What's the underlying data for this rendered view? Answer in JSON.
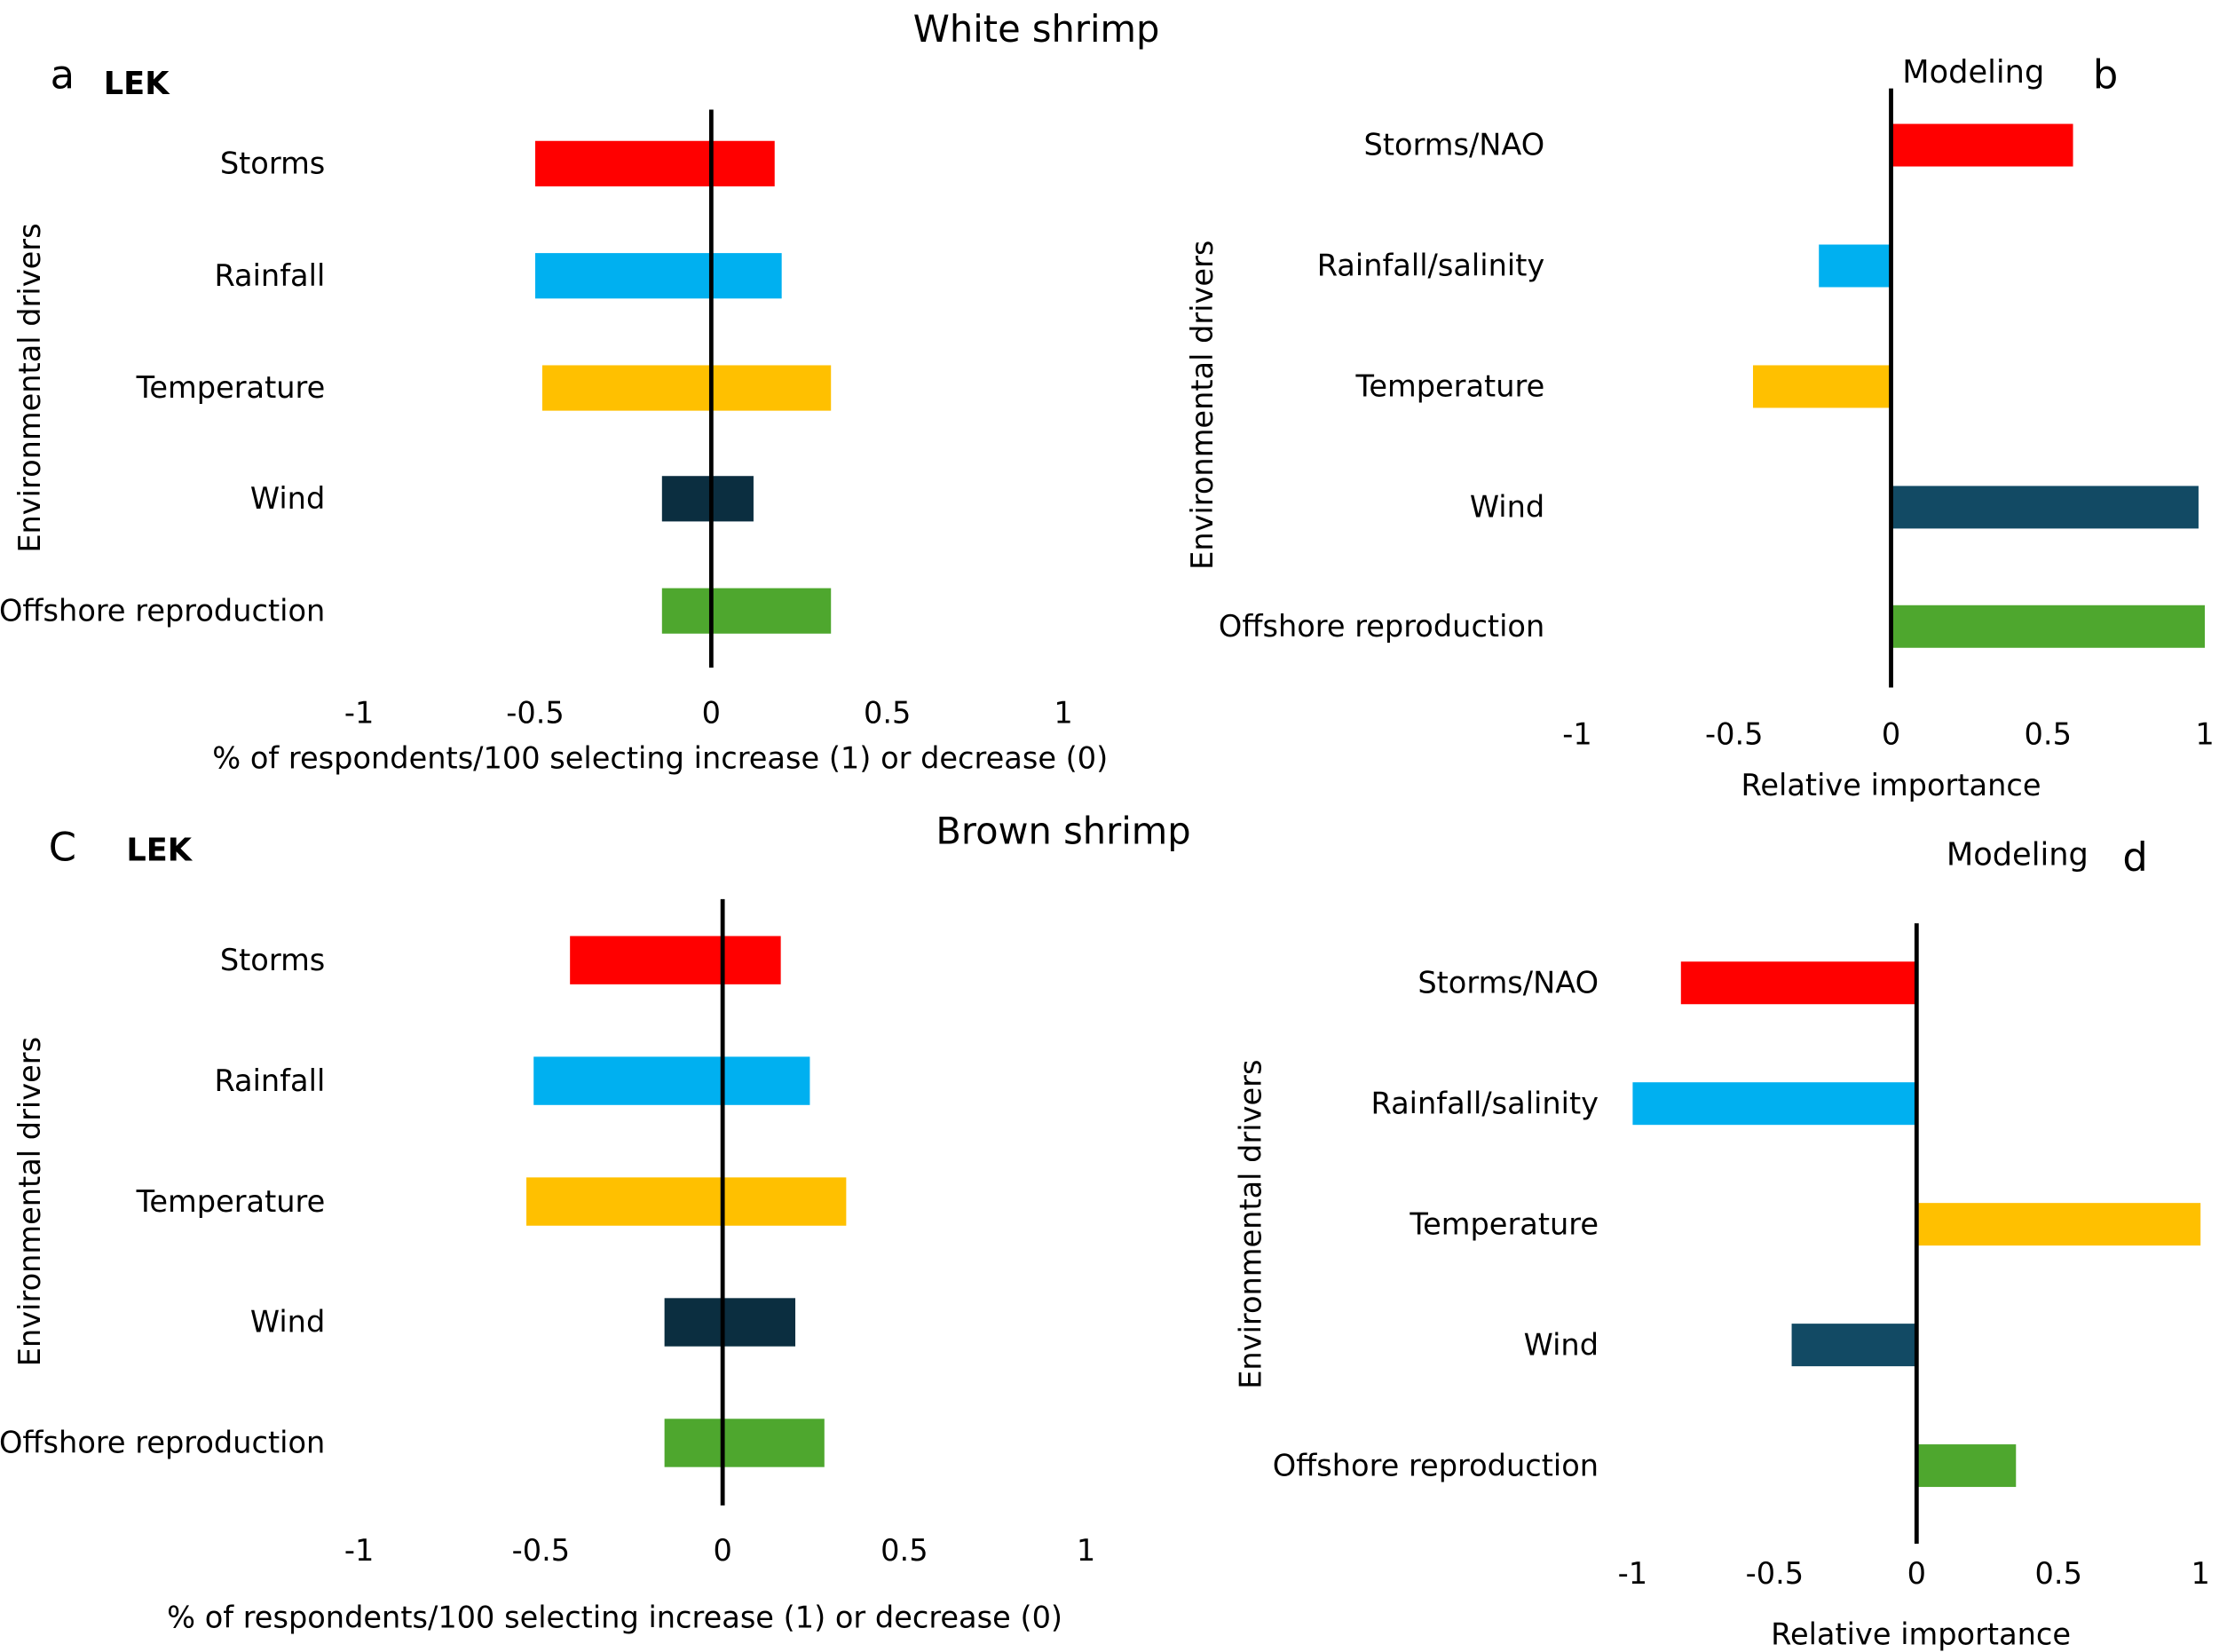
{
  "colors": {
    "storms": "#FF0000",
    "rainfall": "#00B0F0",
    "temperature": "#FFC000",
    "wind_lek": "#0B2E40",
    "wind_model": "#124A64",
    "offshore": "#4EA72E"
  },
  "titles": {
    "white": "White shrimp",
    "brown": "Brown shrimp"
  },
  "chart_data": [
    {
      "id": "a",
      "panel_letter": "a",
      "method": "LEK",
      "type": "bar",
      "orientation": "horizontal-range",
      "categories": [
        "Storms",
        "Rainfall",
        "Temperature",
        "Wind",
        "Offshore reproduction"
      ],
      "ranges": [
        [
          -0.5,
          0.18
        ],
        [
          -0.5,
          0.2
        ],
        [
          -0.48,
          0.34
        ],
        [
          -0.14,
          0.12
        ],
        [
          -0.14,
          0.34
        ]
      ],
      "xlim": [
        -1,
        1
      ],
      "xticks": [
        "-1",
        "-0.5",
        "0",
        "0.5",
        "1"
      ],
      "xlabel": "% of respondents/100 selecting increase (1) or decrease (0)",
      "ylabel": "Environmental drivers"
    },
    {
      "id": "b",
      "panel_letter": "b",
      "method": "Modeling",
      "type": "bar",
      "orientation": "horizontal",
      "categories": [
        "Storms/NAO",
        "Rainfall/salinity",
        "Temperature",
        "Wind",
        "Offshore reproduction"
      ],
      "values": [
        0.58,
        -0.23,
        -0.44,
        0.98,
        1.0
      ],
      "xlim": [
        -1,
        1
      ],
      "xticks": [
        "-1",
        "-0.5",
        "0",
        "0.5",
        "1"
      ],
      "xlabel": "Relative importance",
      "ylabel": "Environmental drivers"
    },
    {
      "id": "c",
      "panel_letter": "C",
      "method": "LEK",
      "type": "bar",
      "orientation": "horizontal-range",
      "categories": [
        "Storms",
        "Rainfall",
        "Temperature",
        "Wind",
        "Offshore reproduction"
      ],
      "ranges": [
        [
          -0.42,
          0.16
        ],
        [
          -0.52,
          0.24
        ],
        [
          -0.54,
          0.34
        ],
        [
          -0.16,
          0.2
        ],
        [
          -0.16,
          0.28
        ]
      ],
      "xlim": [
        -1,
        1
      ],
      "xticks": [
        "-1",
        "-0.5",
        "0",
        "0.5",
        "1"
      ],
      "xlabel": "% of respondents/100 selecting increase (1) or decrease (0)",
      "ylabel": "Environmental drivers"
    },
    {
      "id": "d",
      "panel_letter": "d",
      "method": "Modeling",
      "type": "bar",
      "orientation": "horizontal",
      "categories": [
        "Storms/NAO",
        "Rainfall/salinity",
        "Temperature",
        "Wind",
        "Offshore reproduction"
      ],
      "values": [
        -0.83,
        -1.0,
        1.0,
        -0.44,
        0.35
      ],
      "xlim": [
        -1,
        1
      ],
      "xticks": [
        "-1",
        "-0.5",
        "0",
        "0.5",
        "1"
      ],
      "xlabel": "Relative importance",
      "ylabel": "Environmental drivers"
    }
  ]
}
